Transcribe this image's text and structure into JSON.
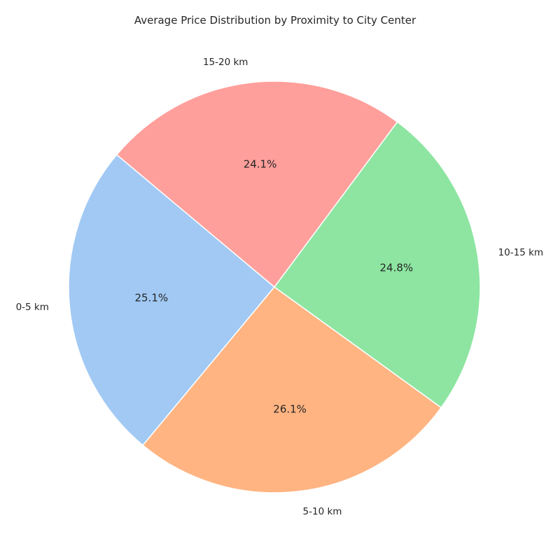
{
  "chart_data": {
    "type": "pie",
    "title": "Average Price Distribution by Proximity to City Center",
    "categories": [
      "0-5 km",
      "5-10 km",
      "10-15 km",
      "15-20 km"
    ],
    "values": [
      25.1,
      26.1,
      24.8,
      24.1
    ],
    "percent_labels": [
      "25.1%",
      "26.1%",
      "24.8%",
      "24.1%"
    ],
    "colors": [
      "#a1c9f4",
      "#ffb482",
      "#8de5a1",
      "#ff9f9b"
    ],
    "start_angle_deg": 140,
    "direction": "counterclockwise",
    "legend": "none"
  }
}
